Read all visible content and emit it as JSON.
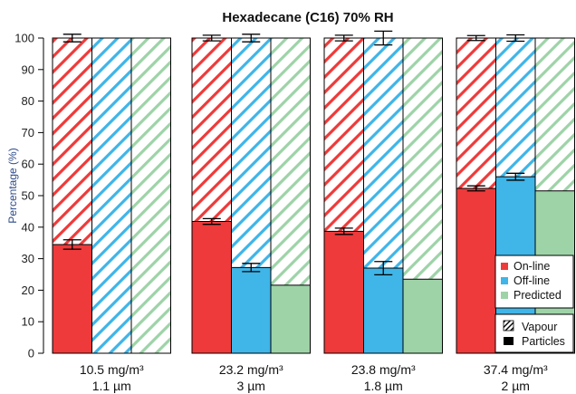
{
  "chart_data": {
    "type": "bar",
    "title": "Hexadecane (C16) 70% RH",
    "ylabel": "Percentage (%)",
    "xlabel": "",
    "ylim": [
      0,
      100
    ],
    "yticks": [
      0,
      10,
      20,
      30,
      40,
      50,
      60,
      70,
      80,
      90,
      100
    ],
    "grid": false,
    "stacked_to": 100,
    "groups": [
      {
        "line1": "10.5 mg/m³",
        "line2": "1.1 µm"
      },
      {
        "line1": "23.2 mg/m³",
        "line2": "3 µm"
      },
      {
        "line1": "23.8 mg/m³",
        "line2": "1.8 µm"
      },
      {
        "line1": "37.4 mg/m³",
        "line2": "2 µm"
      }
    ],
    "series": [
      {
        "name": "On-line",
        "color": "#ee3a3a",
        "particles": [
          34.5,
          41.8,
          38.7,
          52.3
        ],
        "particles_err": [
          1.5,
          0.9,
          1.0,
          0.8
        ],
        "vapour_err": [
          1.2,
          0.9,
          0.9,
          0.8
        ]
      },
      {
        "name": "Off-line",
        "color": "#3fb5e8",
        "particles": [
          0,
          27.2,
          27.0,
          56.0
        ],
        "particles_err": [
          null,
          1.3,
          2.1,
          1.1
        ],
        "vapour_err": [
          null,
          1.2,
          2.2,
          1.0
        ]
      },
      {
        "name": "Predicted",
        "color": "#9ed3a8",
        "particles": [
          0,
          21.6,
          23.5,
          51.5
        ],
        "particles_err": [
          null,
          null,
          null,
          null
        ],
        "vapour_err": [
          null,
          null,
          null,
          null
        ]
      }
    ],
    "legend": {
      "position": "bottom-right",
      "series_items": [
        "On-line",
        "Off-line",
        "Predicted"
      ],
      "fill_items": [
        "Vapour",
        "Particles"
      ]
    }
  }
}
